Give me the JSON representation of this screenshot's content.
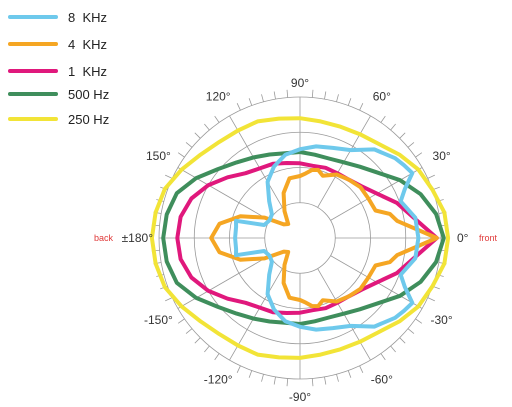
{
  "chart_data": {
    "type": "polar",
    "title": "",
    "angle_labels": [
      {
        "deg": 90,
        "text": "90°"
      },
      {
        "deg": 60,
        "text": "60°"
      },
      {
        "deg": 30,
        "text": "30°"
      },
      {
        "deg": 0,
        "text": "0°"
      },
      {
        "deg": -30,
        "text": "-30°"
      },
      {
        "deg": -60,
        "text": "-60°"
      },
      {
        "deg": -90,
        "text": "-90°"
      },
      {
        "deg": -120,
        "text": "-120°"
      },
      {
        "deg": -150,
        "text": "-150°"
      },
      {
        "deg": 180,
        "text": "±180°"
      },
      {
        "deg": 150,
        "text": "150°"
      },
      {
        "deg": 120,
        "text": "120°"
      }
    ],
    "front_label": "front",
    "back_label": "back",
    "rings": 4,
    "grid": true,
    "legend_position": "top-left",
    "series": [
      {
        "name": "8  KHz",
        "color": "#6ec9ec",
        "points": [
          [
            0,
            0.84
          ],
          [
            10,
            0.83
          ],
          [
            20,
            0.76
          ],
          [
            25,
            0.82
          ],
          [
            30,
            0.92
          ],
          [
            35,
            0.9
          ],
          [
            40,
            0.88
          ],
          [
            50,
            0.82
          ],
          [
            60,
            0.72
          ],
          [
            70,
            0.68
          ],
          [
            80,
            0.66
          ],
          [
            90,
            0.63
          ],
          [
            100,
            0.6
          ],
          [
            110,
            0.54
          ],
          [
            120,
            0.46
          ],
          [
            130,
            0.34
          ],
          [
            140,
            0.26
          ],
          [
            150,
            0.25
          ],
          [
            160,
            0.27
          ],
          [
            165,
            0.47
          ],
          [
            170,
            0.46
          ],
          [
            180,
            0.46
          ]
        ]
      },
      {
        "name": "4  KHz",
        "color": "#f5a623",
        "points": [
          [
            0,
            0.97
          ],
          [
            10,
            0.7
          ],
          [
            15,
            0.66
          ],
          [
            20,
            0.57
          ],
          [
            30,
            0.56
          ],
          [
            40,
            0.56
          ],
          [
            50,
            0.54
          ],
          [
            60,
            0.52
          ],
          [
            70,
            0.47
          ],
          [
            75,
            0.5
          ],
          [
            80,
            0.49
          ],
          [
            85,
            0.46
          ],
          [
            90,
            0.44
          ],
          [
            100,
            0.43
          ],
          [
            110,
            0.34
          ],
          [
            120,
            0.22
          ],
          [
            130,
            0.13
          ],
          [
            140,
            0.15
          ],
          [
            150,
            0.29
          ],
          [
            160,
            0.45
          ],
          [
            170,
            0.58
          ],
          [
            180,
            0.63
          ]
        ]
      },
      {
        "name": "1  KHz",
        "color": "#e0187c",
        "points": [
          [
            0,
            0.97
          ],
          [
            10,
            0.82
          ],
          [
            20,
            0.73
          ],
          [
            30,
            0.63
          ],
          [
            40,
            0.57
          ],
          [
            50,
            0.54
          ],
          [
            60,
            0.53
          ],
          [
            70,
            0.53
          ],
          [
            80,
            0.52
          ],
          [
            90,
            0.53
          ],
          [
            100,
            0.54
          ],
          [
            110,
            0.56
          ],
          [
            120,
            0.57
          ],
          [
            130,
            0.6
          ],
          [
            140,
            0.67
          ],
          [
            150,
            0.75
          ],
          [
            160,
            0.82
          ],
          [
            170,
            0.86
          ],
          [
            180,
            0.87
          ]
        ]
      },
      {
        "name": "500 Hz",
        "color": "#3f8e5c",
        "points": [
          [
            0,
            1.02
          ],
          [
            10,
            0.98
          ],
          [
            20,
            0.91
          ],
          [
            30,
            0.82
          ],
          [
            40,
            0.72
          ],
          [
            50,
            0.66
          ],
          [
            60,
            0.62
          ],
          [
            70,
            0.6
          ],
          [
            80,
            0.6
          ],
          [
            90,
            0.61
          ],
          [
            100,
            0.61
          ],
          [
            110,
            0.63
          ],
          [
            120,
            0.66
          ],
          [
            130,
            0.7
          ],
          [
            140,
            0.76
          ],
          [
            150,
            0.85
          ],
          [
            160,
            0.93
          ],
          [
            170,
            0.96
          ],
          [
            180,
            0.97
          ]
        ]
      },
      {
        "name": "250 Hz",
        "color": "#f2e437",
        "points": [
          [
            0,
            1.05
          ],
          [
            10,
            1.04
          ],
          [
            20,
            1.0
          ],
          [
            30,
            0.97
          ],
          [
            40,
            0.92
          ],
          [
            50,
            0.87
          ],
          [
            60,
            0.85
          ],
          [
            70,
            0.84
          ],
          [
            80,
            0.84
          ],
          [
            90,
            0.85
          ],
          [
            100,
            0.86
          ],
          [
            110,
            0.88
          ],
          [
            120,
            0.88
          ],
          [
            130,
            0.89
          ],
          [
            140,
            0.92
          ],
          [
            150,
            0.97
          ],
          [
            160,
            1.02
          ],
          [
            170,
            1.04
          ],
          [
            180,
            1.05
          ]
        ]
      }
    ]
  }
}
